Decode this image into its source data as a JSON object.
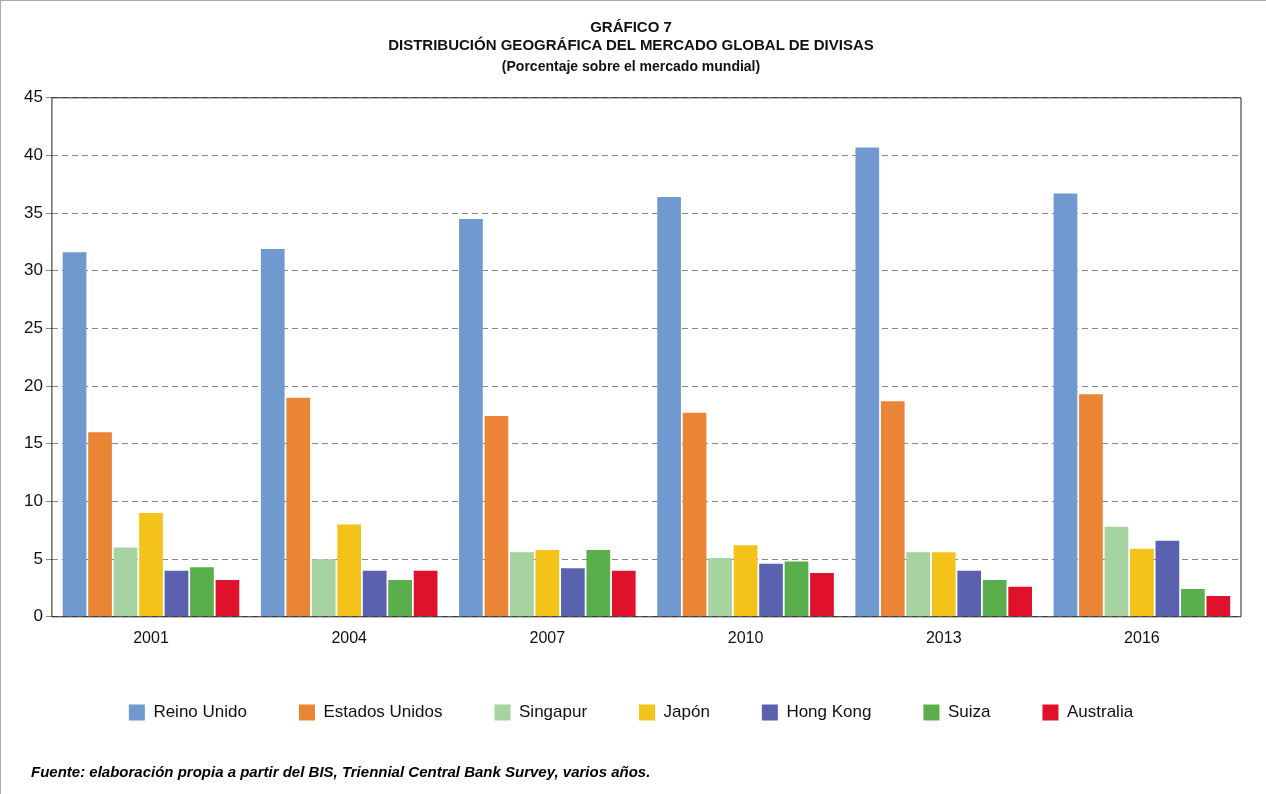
{
  "chart_data": {
    "type": "bar",
    "title": "GRÁFICO 7\nDISTRIBUCIÓN GEOGRÁFICA DEL MERCADO GLOBAL DE DIVISAS",
    "subtitle": "(Porcentaje sobre el mercado mundial)",
    "categories": [
      "2001",
      "2004",
      "2007",
      "2010",
      "2013",
      "2016"
    ],
    "series": [
      {
        "name": "Reino Unido",
        "color": "#7099d0",
        "values": [
          31.6,
          31.9,
          34.5,
          36.4,
          40.7,
          36.7
        ]
      },
      {
        "name": "Estados Unidos",
        "color": "#ea8536",
        "values": [
          16.0,
          19.0,
          17.4,
          17.7,
          18.7,
          19.3
        ]
      },
      {
        "name": "Singapur",
        "color": "#a6d39f",
        "values": [
          6.0,
          5.0,
          5.6,
          5.1,
          5.6,
          7.8
        ]
      },
      {
        "name": "Japón",
        "color": "#f4c31a",
        "values": [
          9.0,
          8.0,
          5.8,
          6.2,
          5.6,
          5.9
        ]
      },
      {
        "name": "Hong Kong",
        "color": "#5a62b0",
        "values": [
          4.0,
          4.0,
          4.2,
          4.6,
          4.0,
          6.6
        ]
      },
      {
        "name": "Suiza",
        "color": "#5aae4c",
        "values": [
          4.3,
          3.2,
          5.8,
          4.8,
          3.2,
          2.4
        ]
      },
      {
        "name": "Australia",
        "color": "#e0112b",
        "values": [
          3.2,
          4.0,
          4.0,
          3.8,
          2.6,
          1.8
        ]
      }
    ],
    "ylim": [
      0,
      45
    ],
    "yticks": [
      0,
      5,
      10,
      15,
      20,
      25,
      30,
      35,
      40,
      45
    ],
    "grid": "y",
    "legend": "bottom",
    "annotations": [
      "Fuente: elaboración propia a partir del BIS, Triennial Central Bank Survey, varios años."
    ]
  }
}
